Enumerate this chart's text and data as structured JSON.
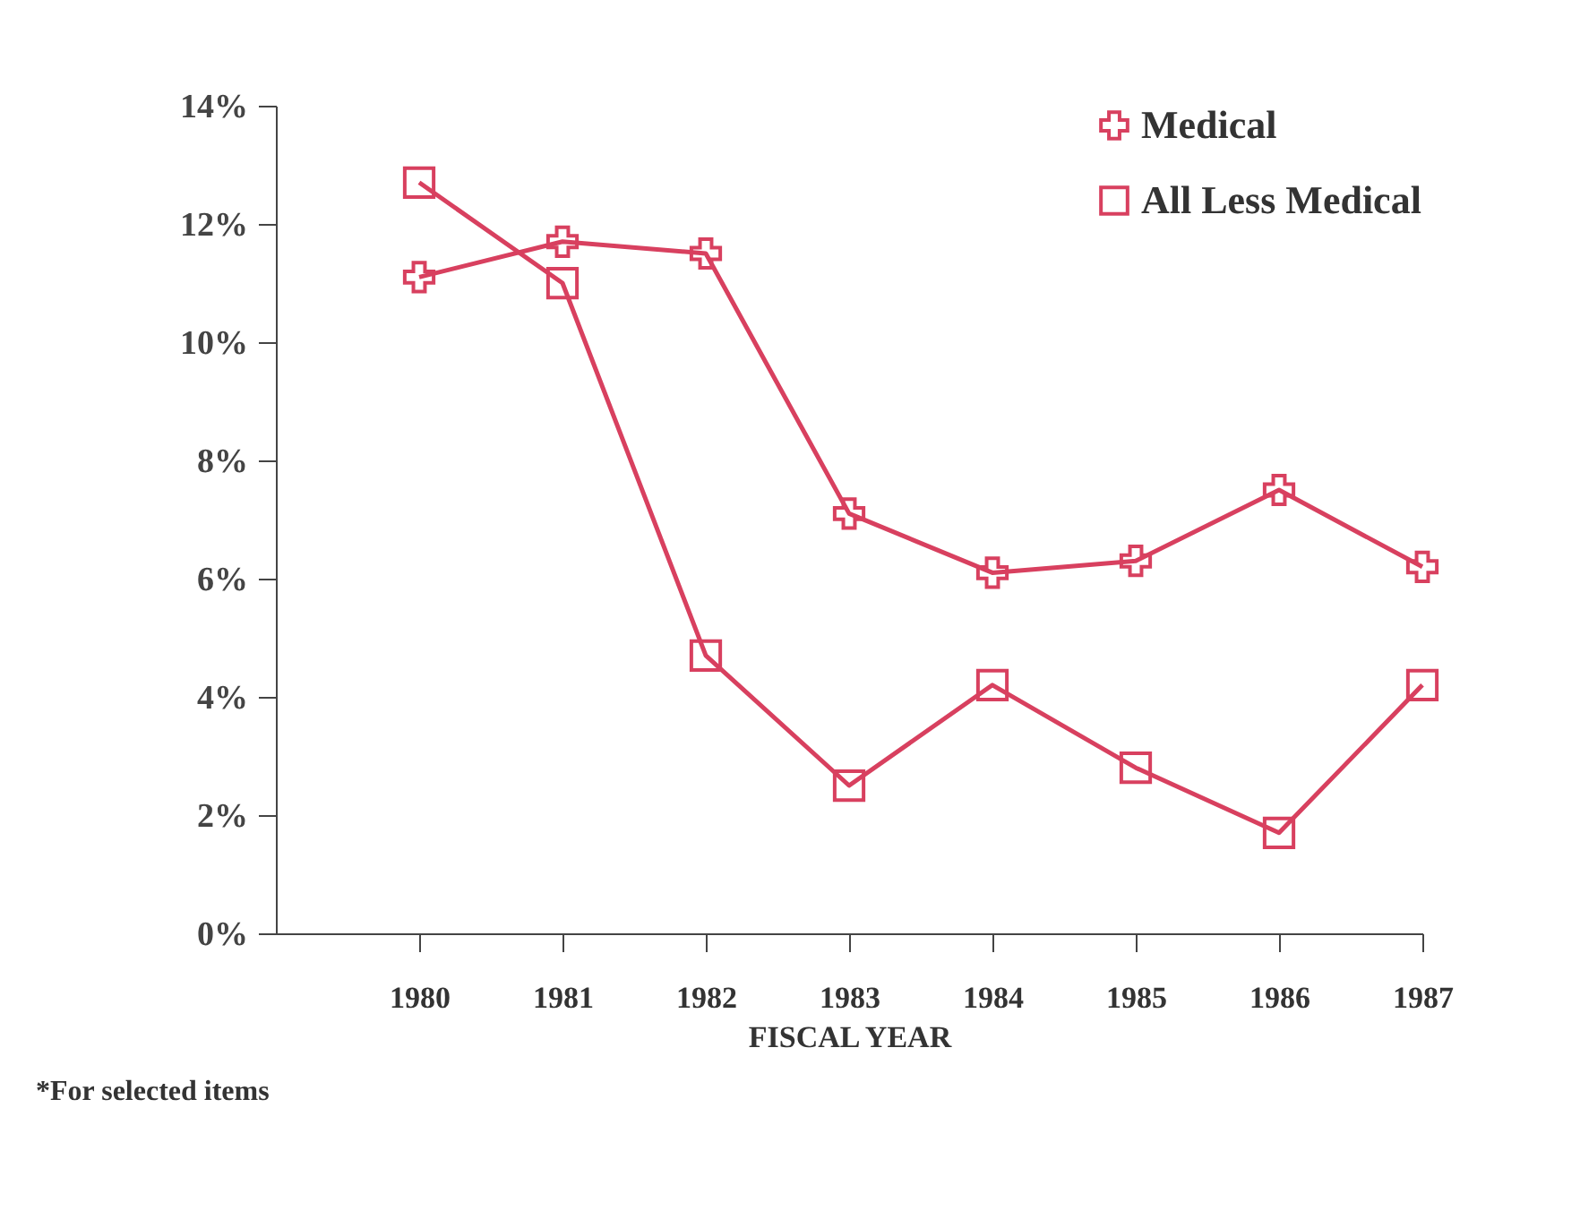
{
  "chart_data": {
    "type": "line",
    "xlabel": "FISCAL YEAR",
    "categories": [
      "1980",
      "1981",
      "1982",
      "1983",
      "1984",
      "1985",
      "1986",
      "1987"
    ],
    "series": [
      {
        "name": "Medical",
        "color": "#d8405f",
        "marker": "cross",
        "values": [
          11.1,
          11.7,
          11.5,
          7.1,
          6.1,
          6.3,
          7.5,
          6.2
        ]
      },
      {
        "name": "All Less Medical",
        "color": "#d8405f",
        "marker": "square",
        "values": [
          12.7,
          11.0,
          4.7,
          2.5,
          4.2,
          2.8,
          1.7,
          4.2
        ]
      }
    ],
    "ylim": [
      0,
      14
    ],
    "yticks": [
      {
        "value": 0,
        "label": "0%"
      },
      {
        "value": 2,
        "label": "2%"
      },
      {
        "value": 4,
        "label": "4%"
      },
      {
        "value": 6,
        "label": "6%"
      },
      {
        "value": 8,
        "label": "8%"
      },
      {
        "value": 10,
        "label": "10%"
      },
      {
        "value": 12,
        "label": "12%"
      },
      {
        "value": 14,
        "label": "14%"
      }
    ],
    "legend": "top right",
    "grid": false,
    "line_style": "solid",
    "annotations": [
      "*For selected items"
    ]
  }
}
